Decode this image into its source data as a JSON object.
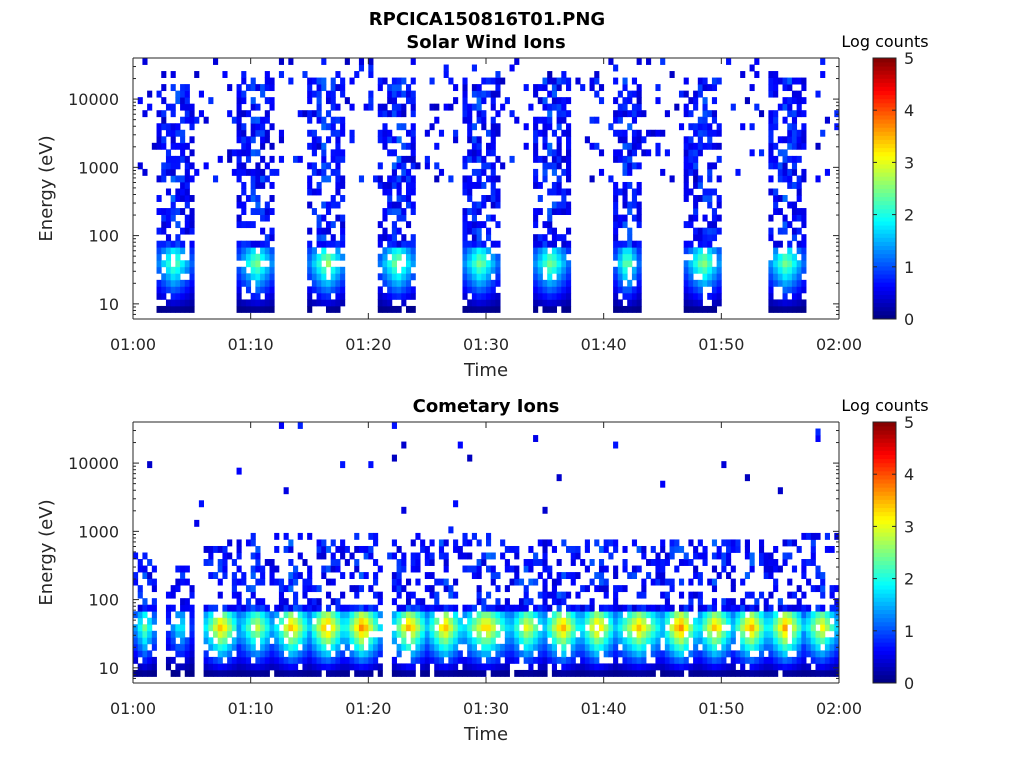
{
  "figure_title": "RPCICA150816T01.PNG",
  "colors": {
    "axis": "#262626",
    "background": "#ffffff"
  },
  "colormap": "jet",
  "chart_data": [
    {
      "type": "heatmap",
      "title": "Solar Wind Ions",
      "xlabel": "Time",
      "ylabel": "Energy (eV)",
      "x_ticks": [
        "01:00",
        "01:10",
        "01:20",
        "01:30",
        "01:40",
        "01:50",
        "02:00"
      ],
      "xlim": [
        "01:00",
        "02:00"
      ],
      "y_ticks": [
        "10",
        "100",
        "1000",
        "10000"
      ],
      "y_scale": "log",
      "ylim": [
        6,
        40000
      ],
      "colorbar": {
        "title": "Log counts",
        "ticks": [
          "0",
          "1",
          "2",
          "3",
          "4",
          "5"
        ],
        "range": [
          0,
          5
        ]
      },
      "bursts": [
        {
          "start": "01:02",
          "end": "01:05",
          "peak_energy_ev": 40,
          "peak_log_counts": 2.5,
          "max_energy_ev": 15000
        },
        {
          "start": "01:09",
          "end": "01:12",
          "peak_energy_ev": 40,
          "peak_log_counts": 2.6,
          "max_energy_ev": 20000
        },
        {
          "start": "01:15",
          "end": "01:18",
          "peak_energy_ev": 40,
          "peak_log_counts": 2.8,
          "max_energy_ev": 20000
        },
        {
          "start": "01:21",
          "end": "01:24",
          "peak_energy_ev": 40,
          "peak_log_counts": 2.7,
          "max_energy_ev": 20000
        },
        {
          "start": "01:28",
          "end": "01:31",
          "peak_energy_ev": 40,
          "peak_log_counts": 2.6,
          "max_energy_ev": 20000
        },
        {
          "start": "01:34",
          "end": "01:37",
          "peak_energy_ev": 40,
          "peak_log_counts": 2.6,
          "max_energy_ev": 20000
        },
        {
          "start": "01:41",
          "end": "01:43",
          "peak_energy_ev": 40,
          "peak_log_counts": 2.6,
          "max_energy_ev": 20000
        },
        {
          "start": "01:47",
          "end": "01:50",
          "peak_energy_ev": 40,
          "peak_log_counts": 2.7,
          "max_energy_ev": 20000
        },
        {
          "start": "01:54",
          "end": "01:57",
          "peak_energy_ev": 40,
          "peak_log_counts": 2.6,
          "max_energy_ev": 20000
        }
      ]
    },
    {
      "type": "heatmap",
      "title": "Cometary Ions",
      "xlabel": "Time",
      "ylabel": "Energy (eV)",
      "x_ticks": [
        "01:00",
        "01:10",
        "01:20",
        "01:30",
        "01:40",
        "01:50",
        "02:00"
      ],
      "xlim": [
        "01:00",
        "02:00"
      ],
      "y_ticks": [
        "10",
        "100",
        "1000",
        "10000"
      ],
      "y_scale": "log",
      "ylim": [
        6,
        40000
      ],
      "colorbar": {
        "title": "Log counts",
        "ticks": [
          "0",
          "1",
          "2",
          "3",
          "4",
          "5"
        ],
        "range": [
          0,
          5
        ]
      },
      "bursts": [
        {
          "start": "01:00",
          "end": "01:02",
          "peak_energy_ev": 40,
          "peak_log_counts": 2.5,
          "max_energy_ev": 500
        },
        {
          "start": "01:03",
          "end": "01:05",
          "peak_energy_ev": 40,
          "peak_log_counts": 2.0,
          "max_energy_ev": 300
        },
        {
          "start": "01:06",
          "end": "01:09",
          "peak_energy_ev": 40,
          "peak_log_counts": 3.6,
          "max_energy_ev": 800
        },
        {
          "start": "01:09",
          "end": "01:12",
          "peak_energy_ev": 40,
          "peak_log_counts": 3.0,
          "max_energy_ev": 800
        },
        {
          "start": "01:12",
          "end": "01:15",
          "peak_energy_ev": 40,
          "peak_log_counts": 3.6,
          "max_energy_ev": 1000
        },
        {
          "start": "01:15",
          "end": "01:18",
          "peak_energy_ev": 40,
          "peak_log_counts": 3.8,
          "max_energy_ev": 1000
        },
        {
          "start": "01:18",
          "end": "01:21",
          "peak_energy_ev": 40,
          "peak_log_counts": 3.9,
          "max_energy_ev": 1000
        },
        {
          "start": "01:22",
          "end": "01:25",
          "peak_energy_ev": 40,
          "peak_log_counts": 3.7,
          "max_energy_ev": 1000
        },
        {
          "start": "01:25",
          "end": "01:28",
          "peak_energy_ev": 40,
          "peak_log_counts": 3.6,
          "max_energy_ev": 800
        },
        {
          "start": "01:28",
          "end": "01:32",
          "peak_energy_ev": 40,
          "peak_log_counts": 3.5,
          "max_energy_ev": 1000
        },
        {
          "start": "01:32",
          "end": "01:35",
          "peak_energy_ev": 40,
          "peak_log_counts": 3.2,
          "max_energy_ev": 800
        },
        {
          "start": "01:35",
          "end": "01:38",
          "peak_energy_ev": 40,
          "peak_log_counts": 3.7,
          "max_energy_ev": 800
        },
        {
          "start": "01:38",
          "end": "01:41",
          "peak_energy_ev": 40,
          "peak_log_counts": 3.6,
          "max_energy_ev": 800
        },
        {
          "start": "01:41",
          "end": "01:45",
          "peak_energy_ev": 40,
          "peak_log_counts": 3.5,
          "max_energy_ev": 800
        },
        {
          "start": "01:45",
          "end": "01:48",
          "peak_energy_ev": 40,
          "peak_log_counts": 3.9,
          "max_energy_ev": 800
        },
        {
          "start": "01:48",
          "end": "01:51",
          "peak_energy_ev": 40,
          "peak_log_counts": 3.6,
          "max_energy_ev": 800
        },
        {
          "start": "01:51",
          "end": "01:54",
          "peak_energy_ev": 40,
          "peak_log_counts": 3.7,
          "max_energy_ev": 800
        },
        {
          "start": "01:54",
          "end": "01:57",
          "peak_energy_ev": 40,
          "peak_log_counts": 3.8,
          "max_energy_ev": 800
        },
        {
          "start": "01:57",
          "end": "02:00",
          "peak_energy_ev": 40,
          "peak_log_counts": 3.3,
          "max_energy_ev": 1000
        }
      ]
    }
  ]
}
